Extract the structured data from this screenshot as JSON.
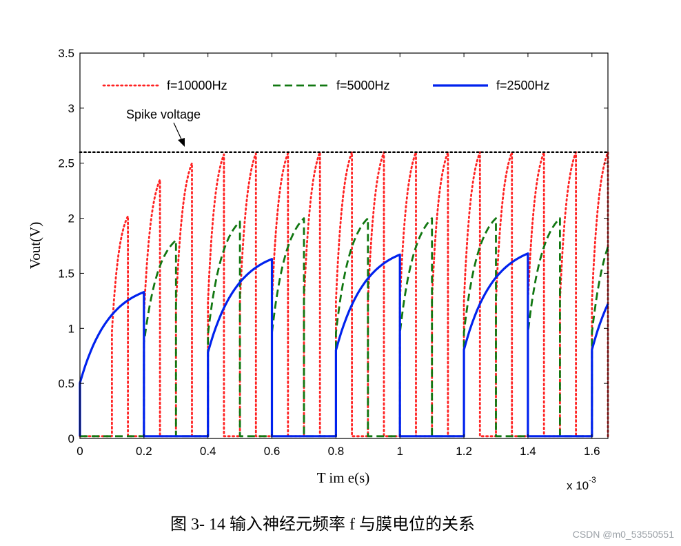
{
  "chart_data": {
    "type": "line",
    "title": "",
    "xlabel": "T im e(s)",
    "ylabel": "Vout(V)",
    "x_scale_note": "x 10",
    "x_scale_exponent": "-3",
    "xlim": [
      0,
      1.65
    ],
    "ylim": [
      0,
      3.5
    ],
    "xticks": [
      "0",
      "0.2",
      "0.4",
      "0.6",
      "0.8",
      "1",
      "1.2",
      "1.4",
      "1.6"
    ],
    "yticks": [
      "0",
      "0.5",
      "1",
      "1.5",
      "2",
      "2.5",
      "3",
      "3.5"
    ],
    "grid": false,
    "legend_position": "top",
    "series": [
      {
        "name": "f=10000Hz",
        "color": "#ff2222",
        "style": "dotted",
        "period": 0.1,
        "peaks": [
          0,
          2.02,
          2.35,
          2.5,
          2.58,
          2.59,
          2.59,
          2.6,
          2.6,
          2.6,
          2.6,
          2.6,
          2.6,
          2.6,
          2.6,
          2.6,
          2.6,
          2.6
        ]
      },
      {
        "name": "f=5000Hz",
        "color": "#117711",
        "style": "dashed",
        "period": 0.2,
        "peaks": [
          0,
          1.8,
          1.97,
          2.0,
          2.0,
          2.0,
          2.0,
          2.0,
          2.0,
          2.0
        ]
      },
      {
        "name": "f=2500Hz",
        "color": "#0022ee",
        "style": "solid",
        "period": 0.4,
        "peaks": [
          1.33,
          1.63,
          1.67,
          1.68,
          1.68
        ]
      }
    ],
    "reference_line": {
      "y": 2.6,
      "color": "#000000",
      "style": "dotted"
    },
    "annotation": {
      "text": "Spike voltage"
    }
  },
  "caption": {
    "text": "图 3- 14  输入神经元频率 f 与膜电位的关系"
  },
  "watermark": {
    "text": "CSDN @m0_53550551"
  }
}
